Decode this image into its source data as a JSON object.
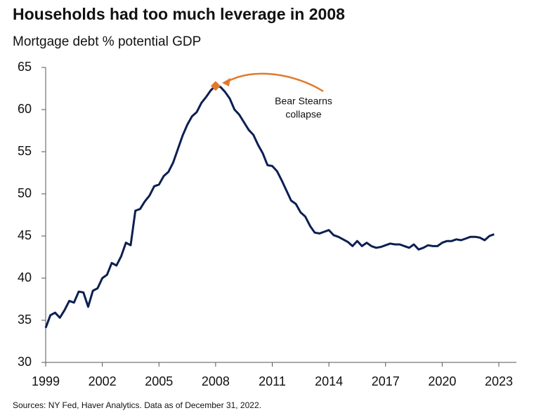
{
  "chart_data": {
    "type": "line",
    "title": "Households had too much leverage in 2008",
    "subtitle": "Mortgage debt % potential GDP",
    "source": "Sources: NY Fed, Haver Analytics. Data as of December 31, 2022.",
    "x": [
      1999,
      1999.25,
      1999.5,
      1999.75,
      2000,
      2000.25,
      2000.5,
      2000.75,
      2001,
      2001.25,
      2001.5,
      2001.75,
      2002,
      2002.25,
      2002.5,
      2002.75,
      2003,
      2003.25,
      2003.5,
      2003.75,
      2004,
      2004.25,
      2004.5,
      2004.75,
      2005,
      2005.25,
      2005.5,
      2005.75,
      2006,
      2006.25,
      2006.5,
      2006.75,
      2007,
      2007.25,
      2007.5,
      2007.75,
      2008,
      2008.25,
      2008.5,
      2008.75,
      2009,
      2009.25,
      2009.5,
      2009.75,
      2010,
      2010.25,
      2010.5,
      2010.75,
      2011,
      2011.25,
      2011.5,
      2011.75,
      2012,
      2012.25,
      2012.5,
      2012.75,
      2013,
      2013.25,
      2013.5,
      2013.75,
      2014,
      2014.25,
      2014.5,
      2014.75,
      2015,
      2015.25,
      2015.5,
      2015.75,
      2016,
      2016.25,
      2016.5,
      2016.75,
      2017,
      2017.25,
      2017.5,
      2017.75,
      2018,
      2018.25,
      2018.5,
      2018.75,
      2019,
      2019.25,
      2019.5,
      2019.75,
      2020,
      2020.25,
      2020.5,
      2020.75,
      2021,
      2021.25,
      2021.5,
      2021.75,
      2022,
      2022.25,
      2022.5,
      2022.75
    ],
    "series": [
      {
        "name": "Mortgage debt % potential GDP",
        "color": "#0b1f51",
        "values": [
          34.1,
          35.6,
          35.9,
          35.3,
          36.2,
          37.3,
          37.1,
          38.4,
          38.3,
          36.6,
          38.5,
          38.8,
          40.0,
          40.4,
          41.8,
          41.5,
          42.6,
          44.2,
          43.9,
          48.0,
          48.2,
          49.1,
          49.8,
          50.9,
          51.1,
          52.1,
          52.6,
          53.7,
          55.3,
          56.9,
          58.2,
          59.2,
          59.7,
          60.8,
          61.5,
          62.3,
          62.8,
          62.7,
          62.1,
          61.3,
          60.0,
          59.4,
          58.5,
          57.6,
          57.0,
          55.8,
          54.8,
          53.4,
          53.3,
          52.7,
          51.6,
          50.4,
          49.2,
          48.8,
          47.8,
          47.3,
          46.2,
          45.4,
          45.3,
          45.5,
          45.7,
          45.1,
          44.9,
          44.6,
          44.3,
          43.8,
          44.4,
          43.8,
          44.2,
          43.8,
          43.6,
          43.7,
          43.9,
          44.1,
          44.0,
          44.0,
          43.8,
          43.6,
          44.0,
          43.4,
          43.6,
          43.9,
          43.8,
          43.8,
          44.2,
          44.4,
          44.4,
          44.6,
          44.5,
          44.7,
          44.9,
          44.9,
          44.8,
          44.5,
          45.0,
          45.2
        ]
      }
    ],
    "annotation": {
      "text": [
        "Bear Stearns",
        "collapse"
      ],
      "x": 2008,
      "y": 62.8,
      "color": "#e07b2c"
    },
    "xlim": [
      1999,
      2023.93
    ],
    "xticks": [
      1999,
      2002,
      2005,
      2008,
      2011,
      2014,
      2017,
      2020,
      2023
    ],
    "ylim": [
      30,
      65
    ],
    "yticks": [
      30,
      35,
      40,
      45,
      50,
      55,
      60,
      65
    ],
    "grid": false
  }
}
